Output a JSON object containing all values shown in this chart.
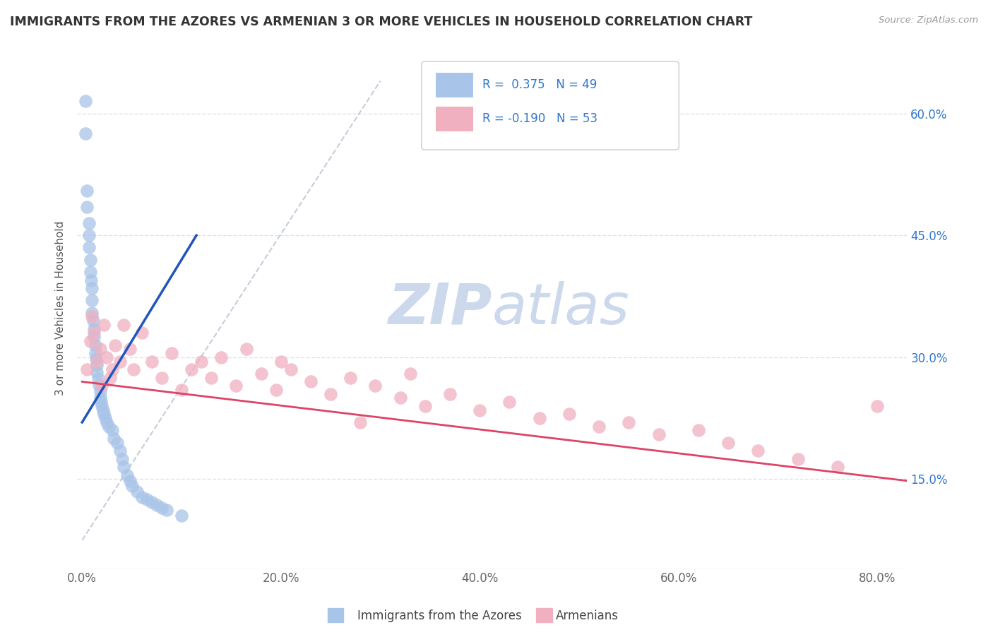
{
  "title": "IMMIGRANTS FROM THE AZORES VS ARMENIAN 3 OR MORE VEHICLES IN HOUSEHOLD CORRELATION CHART",
  "source_text": "Source: ZipAtlas.com",
  "ylabel": "3 or more Vehicles in Household",
  "xlabel_ticks": [
    "0.0%",
    "20.0%",
    "40.0%",
    "60.0%",
    "80.0%"
  ],
  "xlabel_tick_vals": [
    0.0,
    0.2,
    0.4,
    0.6,
    0.8
  ],
  "ylabel_ticks": [
    "15.0%",
    "30.0%",
    "45.0%",
    "60.0%"
  ],
  "ylabel_tick_vals": [
    0.15,
    0.3,
    0.45,
    0.6
  ],
  "xlim": [
    -0.005,
    0.83
  ],
  "ylim": [
    0.04,
    0.68
  ],
  "blue_color": "#a8c4e8",
  "pink_color": "#f0b0c0",
  "blue_line_color": "#2255bb",
  "pink_line_color": "#dd4466",
  "dashed_line_color": "#b8c0d0",
  "watermark_color": "#ccd8ec",
  "background_color": "#ffffff",
  "grid_color": "#dde2ea",
  "azores_x": [
    0.003,
    0.003,
    0.005,
    0.005,
    0.007,
    0.007,
    0.007,
    0.008,
    0.008,
    0.009,
    0.01,
    0.01,
    0.01,
    0.011,
    0.012,
    0.012,
    0.013,
    0.013,
    0.014,
    0.015,
    0.015,
    0.016,
    0.017,
    0.018,
    0.018,
    0.019,
    0.02,
    0.021,
    0.022,
    0.023,
    0.025,
    0.027,
    0.03,
    0.032,
    0.035,
    0.038,
    0.04,
    0.042,
    0.045,
    0.048,
    0.05,
    0.055,
    0.06,
    0.065,
    0.07,
    0.075,
    0.08,
    0.085,
    0.1
  ],
  "azores_y": [
    0.615,
    0.575,
    0.505,
    0.485,
    0.465,
    0.45,
    0.435,
    0.42,
    0.405,
    0.395,
    0.385,
    0.37,
    0.355,
    0.345,
    0.335,
    0.325,
    0.315,
    0.305,
    0.298,
    0.29,
    0.282,
    0.274,
    0.266,
    0.258,
    0.25,
    0.245,
    0.24,
    0.235,
    0.23,
    0.225,
    0.22,
    0.215,
    0.21,
    0.2,
    0.195,
    0.185,
    0.175,
    0.165,
    0.155,
    0.148,
    0.142,
    0.135,
    0.128,
    0.125,
    0.122,
    0.118,
    0.115,
    0.112,
    0.105
  ],
  "armenian_x": [
    0.005,
    0.008,
    0.01,
    0.012,
    0.015,
    0.018,
    0.02,
    0.022,
    0.025,
    0.028,
    0.03,
    0.033,
    0.038,
    0.042,
    0.048,
    0.052,
    0.06,
    0.07,
    0.08,
    0.09,
    0.1,
    0.11,
    0.12,
    0.13,
    0.14,
    0.155,
    0.165,
    0.18,
    0.195,
    0.21,
    0.23,
    0.25,
    0.27,
    0.295,
    0.32,
    0.345,
    0.37,
    0.4,
    0.43,
    0.46,
    0.49,
    0.52,
    0.55,
    0.58,
    0.62,
    0.65,
    0.68,
    0.72,
    0.76,
    0.8,
    0.33,
    0.2,
    0.28
  ],
  "armenian_y": [
    0.285,
    0.32,
    0.35,
    0.33,
    0.295,
    0.31,
    0.265,
    0.34,
    0.3,
    0.275,
    0.285,
    0.315,
    0.295,
    0.34,
    0.31,
    0.285,
    0.33,
    0.295,
    0.275,
    0.305,
    0.26,
    0.285,
    0.295,
    0.275,
    0.3,
    0.265,
    0.31,
    0.28,
    0.26,
    0.285,
    0.27,
    0.255,
    0.275,
    0.265,
    0.25,
    0.24,
    0.255,
    0.235,
    0.245,
    0.225,
    0.23,
    0.215,
    0.22,
    0.205,
    0.21,
    0.195,
    0.185,
    0.175,
    0.165,
    0.24,
    0.28,
    0.295,
    0.22
  ],
  "blue_line_x": [
    0.0,
    0.115
  ],
  "blue_line_y": [
    0.22,
    0.45
  ],
  "pink_line_x": [
    0.0,
    0.83
  ],
  "pink_line_y": [
    0.27,
    0.148
  ],
  "dash_line_x": [
    0.0,
    0.3
  ],
  "dash_line_y": [
    0.075,
    0.64
  ]
}
